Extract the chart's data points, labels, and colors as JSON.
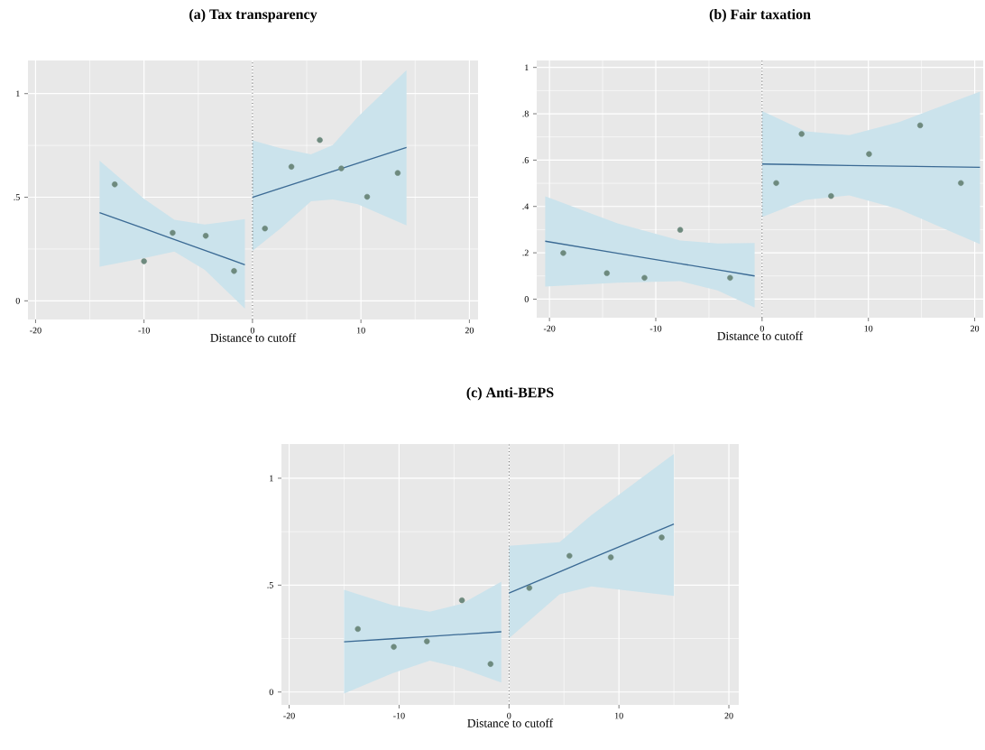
{
  "chart_data": [
    {
      "type": "scatter",
      "title": "(a) Tax transparency",
      "xlabel": "Distance to cutoff",
      "xlim": [
        -20.7,
        20.8
      ],
      "ylim": [
        -0.09,
        1.16
      ],
      "xticks": [
        -20,
        -10,
        0,
        10,
        20
      ],
      "yticks": [
        0,
        {
          "value": 0.5,
          "label": ".5"
        },
        1
      ],
      "grid": true,
      "ref_lines": [
        {
          "axis": "x",
          "value": 0,
          "color": "#666666",
          "line_style": "dotted"
        }
      ],
      "series": [
        {
          "color": "#6e8a7e",
          "marker": "circle",
          "x": [
            -12.7,
            -10.0,
            -7.36,
            -4.31,
            -1.7,
            1.15,
            3.59,
            6.21,
            8.19,
            10.57,
            13.39
          ],
          "values": [
            0.562,
            0.191,
            0.328,
            0.314,
            0.144,
            0.349,
            0.647,
            0.776,
            0.639,
            0.502,
            0.617
          ]
        },
        {
          "type": "line",
          "color": "#3b6a94",
          "x": [
            -14.1,
            -10,
            -7.2,
            -4.4,
            -0.7
          ],
          "values": [
            0.426,
            0.349,
            0.296,
            0.244,
            0.174
          ],
          "lower": [
            0.165,
            0.206,
            0.238,
            0.15,
            -0.038
          ],
          "upper": [
            0.677,
            0.493,
            0.391,
            0.368,
            0.394
          ]
        },
        {
          "type": "line",
          "color": "#3b6a94",
          "x": [
            0,
            2.5,
            5.4,
            7.4,
            9.7,
            14.2
          ],
          "values": [
            0.5,
            0.542,
            0.591,
            0.625,
            0.664,
            0.74
          ],
          "lower": [
            0.241,
            0.346,
            0.481,
            0.489,
            0.466,
            0.364
          ],
          "upper": [
            0.774,
            0.737,
            0.707,
            0.752,
            0.887,
            1.113
          ]
        }
      ]
    },
    {
      "type": "scatter",
      "title": "(b) Fair taxation",
      "xlabel": "Distance to cutoff",
      "xlim": [
        -21.2,
        20.8
      ],
      "ylim": [
        -0.08,
        1.03
      ],
      "xticks": [
        -20,
        -10,
        0,
        10,
        20
      ],
      "yticks": [
        0,
        {
          "value": 0.2,
          "label": ".2"
        },
        {
          "value": 0.4,
          "label": ".4"
        },
        {
          "value": 0.6,
          "label": ".6"
        },
        {
          "value": 0.8,
          "label": ".8"
        },
        1
      ],
      "grid": true,
      "ref_lines": [
        {
          "axis": "x",
          "value": 0,
          "color": "#666666",
          "line_style": "dotted"
        }
      ],
      "series": [
        {
          "color": "#6e8a7e",
          "marker": "circle",
          "x": [
            -18.7,
            -14.6,
            -11.06,
            -7.7,
            -3.01,
            1.33,
            3.72,
            6.49,
            10.06,
            14.87,
            18.7
          ],
          "values": [
            0.199,
            0.112,
            0.092,
            0.299,
            0.092,
            0.501,
            0.713,
            0.445,
            0.626,
            0.75,
            0.501
          ]
        },
        {
          "type": "line",
          "color": "#3b6a94",
          "x": [
            -20.4,
            -13.6,
            -7.7,
            -4.2,
            -0.7
          ],
          "values": [
            0.25,
            0.198,
            0.153,
            0.127,
            0.1
          ],
          "lower": [
            0.054,
            0.071,
            0.078,
            0.038,
            -0.036
          ],
          "upper": [
            0.444,
            0.327,
            0.253,
            0.24,
            0.242
          ]
        },
        {
          "type": "line",
          "color": "#3b6a94",
          "x": [
            0,
            4.1,
            8.2,
            12.9,
            20.5
          ],
          "values": [
            0.583,
            0.58,
            0.577,
            0.574,
            0.569
          ],
          "lower": [
            0.354,
            0.428,
            0.448,
            0.388,
            0.237
          ],
          "upper": [
            0.812,
            0.724,
            0.708,
            0.764,
            0.896
          ]
        }
      ]
    },
    {
      "type": "scatter",
      "title": "(c) Anti-BEPS",
      "xlabel": "Distance to cutoff",
      "xlim": [
        -20.7,
        20.9
      ],
      "ylim": [
        -0.06,
        1.16
      ],
      "xticks": [
        -20,
        -10,
        0,
        10,
        20
      ],
      "yticks": [
        0,
        {
          "value": 0.5,
          "label": ".5"
        },
        1
      ],
      "grid": true,
      "ref_lines": [
        {
          "axis": "x",
          "value": 0,
          "color": "#666666",
          "line_style": "dotted"
        }
      ],
      "series": [
        {
          "color": "#6e8a7e",
          "marker": "circle",
          "x": [
            -13.75,
            -10.48,
            -7.47,
            -4.28,
            -1.68,
            1.85,
            5.5,
            9.26,
            13.89
          ],
          "values": [
            0.295,
            0.211,
            0.237,
            0.429,
            0.131,
            0.487,
            0.637,
            0.63,
            0.723
          ]
        },
        {
          "type": "line",
          "color": "#3b6a94",
          "x": [
            -15,
            -10.6,
            -7.2,
            -4.3,
            -0.7
          ],
          "values": [
            0.235,
            0.249,
            0.26,
            0.27,
            0.282
          ],
          "lower": [
            -0.007,
            0.088,
            0.147,
            0.111,
            0.044
          ],
          "upper": [
            0.478,
            0.406,
            0.376,
            0.413,
            0.516
          ]
        },
        {
          "type": "line",
          "color": "#3b6a94",
          "x": [
            0,
            4.6,
            7.5,
            15
          ],
          "values": [
            0.463,
            0.562,
            0.625,
            0.786
          ],
          "lower": [
            0.251,
            0.457,
            0.494,
            0.45
          ],
          "upper": [
            0.684,
            0.701,
            0.827,
            1.114
          ]
        }
      ]
    }
  ]
}
